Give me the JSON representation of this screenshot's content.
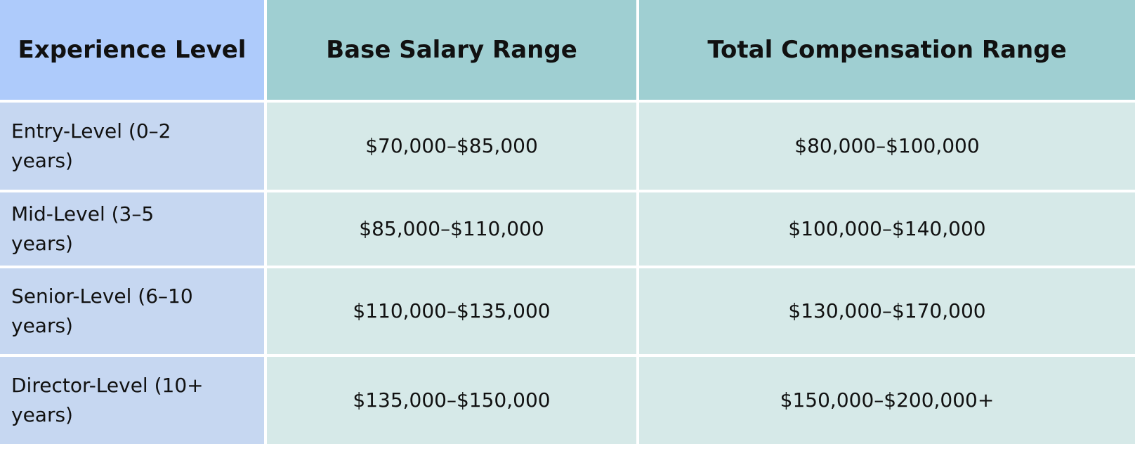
{
  "table": {
    "header": [
      "Experience Level",
      "Base Salary Range",
      "Total Compensation Range"
    ],
    "rows": [
      [
        "Entry-Level (0–2 years)",
        "$70,000–$85,000",
        "$80,000–$100,000"
      ],
      [
        "Mid-Level (3–5 years)",
        "$85,000–$110,000",
        "$100,000–$140,000"
      ],
      [
        "Senior-Level (6–10 years)",
        "$110,000–$135,000",
        "$130,000–$170,000"
      ],
      [
        "Director-Level (10+ years)",
        "$135,000–$150,000",
        "$150,000–$200,000+"
      ]
    ]
  }
}
